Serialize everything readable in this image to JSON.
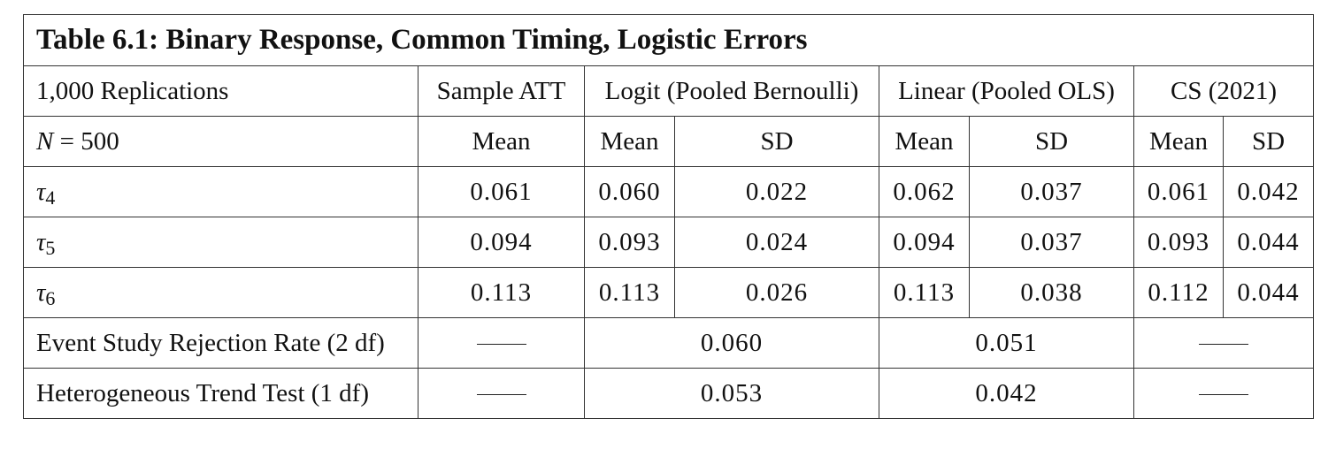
{
  "table": {
    "title_bold_prefix": "Table 6.1",
    "title_rest": ": Binary Response, Common Timing, Logistic Errors",
    "header_row1": {
      "label": "1,000 Replications",
      "groups": [
        "Sample ATT",
        "Logit (Pooled Bernoulli)",
        "Linear (Pooled OLS)",
        "CS (2021)"
      ]
    },
    "header_row2": {
      "label_var": "N",
      "label_rest": " = 500",
      "cols": [
        "Mean",
        "Mean",
        "SD",
        "Mean",
        "SD",
        "Mean",
        "SD"
      ]
    },
    "rows": [
      {
        "sym": "τ",
        "sub": "4",
        "values": [
          "0.061",
          "0.060",
          "0.022",
          "0.062",
          "0.037",
          "0.061",
          "0.042"
        ]
      },
      {
        "sym": "τ",
        "sub": "5",
        "values": [
          "0.094",
          "0.093",
          "0.024",
          "0.094",
          "0.037",
          "0.093",
          "0.044"
        ]
      },
      {
        "sym": "τ",
        "sub": "6",
        "values": [
          "0.113",
          "0.113",
          "0.026",
          "0.113",
          "0.038",
          "0.112",
          "0.044"
        ]
      }
    ],
    "tests": [
      {
        "label": "Event Study Rejection Rate (2 df)",
        "logit": "0.060",
        "linear": "0.051"
      },
      {
        "label": "Heterogeneous Trend Test (1 df)",
        "logit": "0.053",
        "linear": "0.042"
      }
    ]
  }
}
